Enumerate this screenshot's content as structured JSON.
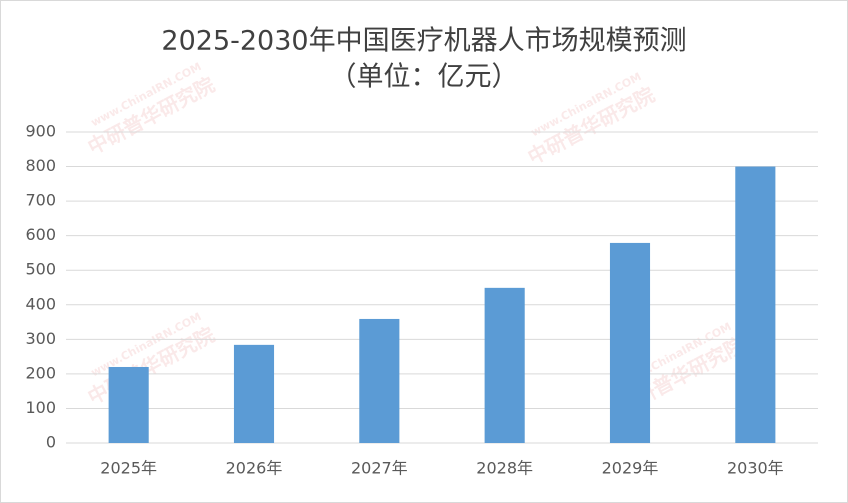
{
  "chart_data": {
    "type": "bar",
    "title": "2025-2030年中国医疗机器人市场规模预测",
    "subtitle": "（单位：亿元）",
    "categories": [
      "2025年",
      "2026年",
      "2027年",
      "2028年",
      "2029年",
      "2030年"
    ],
    "values": [
      220,
      284,
      359,
      449,
      579,
      800
    ],
    "color": "#5b9bd5",
    "ylim": [
      0,
      900
    ],
    "yticks": [
      0,
      100,
      200,
      300,
      400,
      500,
      600,
      700,
      800,
      900
    ],
    "grid": true,
    "watermark": "中研普华研究院",
    "watermark_url": "www.ChinaIRN.COM"
  }
}
